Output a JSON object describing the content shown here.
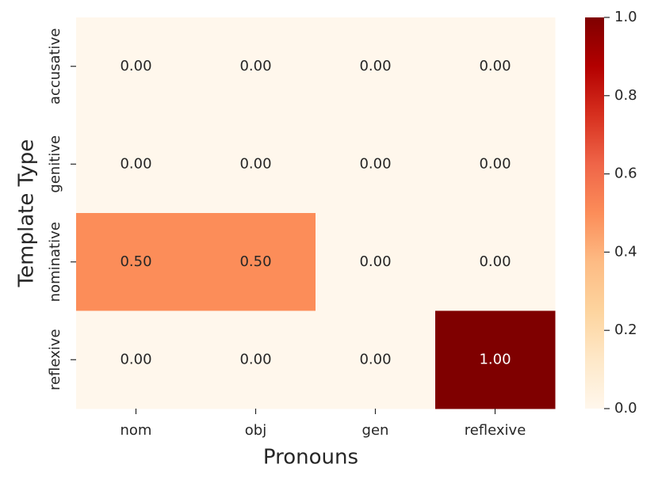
{
  "chart_data": {
    "type": "heatmap",
    "xlabel": "Pronouns",
    "ylabel": "Template Type",
    "x_categories": [
      "nom",
      "obj",
      "gen",
      "reflexive"
    ],
    "y_categories": [
      "accusative",
      "genitive",
      "nominative",
      "reflexive"
    ],
    "values": [
      [
        0,
        0,
        0,
        0
      ],
      [
        0,
        0,
        0,
        0
      ],
      [
        0.5,
        0.5,
        0,
        0
      ],
      [
        0,
        0,
        0,
        1
      ]
    ],
    "value_labels": [
      [
        "0.00",
        "0.00",
        "0.00",
        "0.00"
      ],
      [
        "0.00",
        "0.00",
        "0.00",
        "0.00"
      ],
      [
        "0.50",
        "0.50",
        "0.00",
        "0.00"
      ],
      [
        "0.00",
        "0.00",
        "0.00",
        "1.00"
      ]
    ],
    "colormap": [
      "#fff7ec",
      "#fee8c8",
      "#fdd49e",
      "#fdbb84",
      "#fc8d59",
      "#ef6548",
      "#d7301f",
      "#b30000",
      "#7f0000"
    ],
    "zlim": [
      0,
      1
    ],
    "zticks": [
      {
        "value": 0,
        "label": "0.0"
      },
      {
        "value": 0.2,
        "label": "0.2"
      },
      {
        "value": 0.4,
        "label": "0.4"
      },
      {
        "value": 0.6,
        "label": "0.6"
      },
      {
        "value": 0.8,
        "label": "0.8"
      },
      {
        "value": 1,
        "label": "1.0"
      }
    ]
  }
}
